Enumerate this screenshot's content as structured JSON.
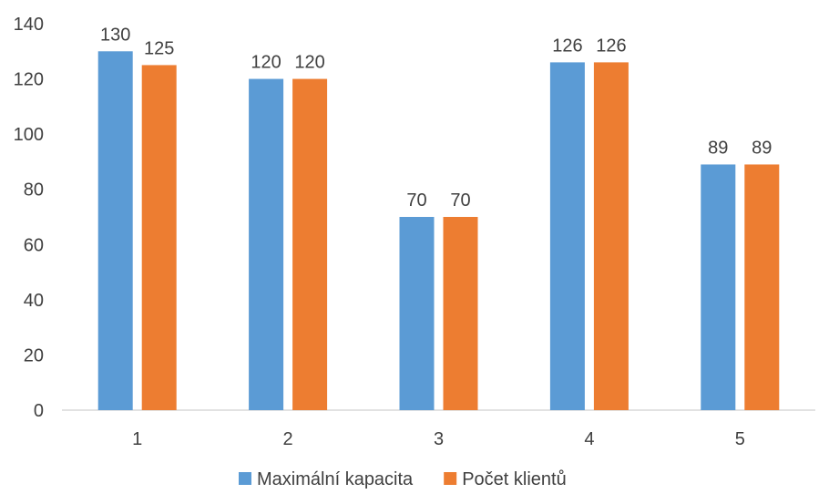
{
  "chart_data": {
    "type": "bar",
    "categories": [
      "1",
      "2",
      "3",
      "4",
      "5"
    ],
    "series": [
      {
        "name": "Maximální kapacita",
        "values": [
          130,
          120,
          70,
          126,
          89
        ],
        "color": "#5B9BD5"
      },
      {
        "name": "Počet klientů",
        "values": [
          125,
          120,
          70,
          126,
          89
        ],
        "color": "#ED7D31"
      }
    ],
    "y_ticks": [
      "0",
      "20",
      "40",
      "60",
      "80",
      "100",
      "120",
      "140"
    ],
    "ylim": [
      0,
      140
    ],
    "grid": false,
    "legend_position": "bottom",
    "data_labels": true
  }
}
